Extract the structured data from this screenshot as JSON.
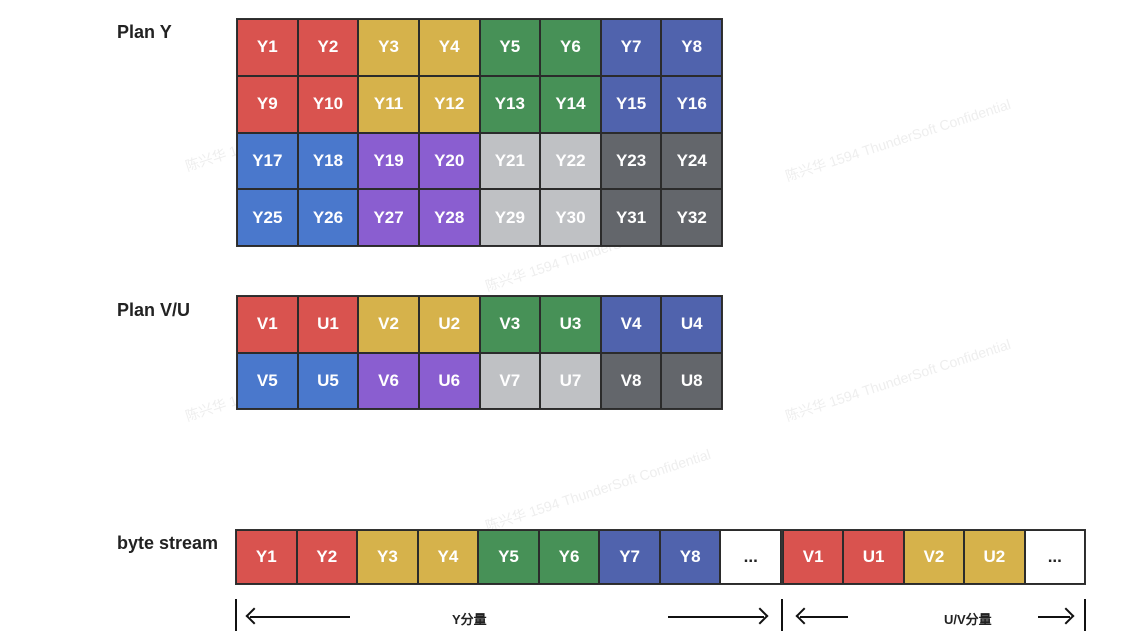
{
  "labels": {
    "plan_y": "Plan Y",
    "plan_vu": "Plan V/U",
    "byte_stream": "byte stream",
    "y_range": "Y分量",
    "uv_range": "U/V分量"
  },
  "watermark_text": "陈兴华 1594 ThunderSoft Confidential",
  "colors": {
    "red": "#d9534f",
    "yellow": "#d6b24b",
    "green": "#479157",
    "navy": "#5063ad",
    "blue": "#4a78cc",
    "purple": "#8a5ed0",
    "light_gray": "#bfc1c4",
    "dark_gray": "#63666b"
  },
  "plan_y_cells": [
    {
      "text": "Y1",
      "color": "red"
    },
    {
      "text": "Y2",
      "color": "red"
    },
    {
      "text": "Y3",
      "color": "yellow"
    },
    {
      "text": "Y4",
      "color": "yellow"
    },
    {
      "text": "Y5",
      "color": "green"
    },
    {
      "text": "Y6",
      "color": "green"
    },
    {
      "text": "Y7",
      "color": "navy"
    },
    {
      "text": "Y8",
      "color": "navy"
    },
    {
      "text": "Y9",
      "color": "red"
    },
    {
      "text": "Y10",
      "color": "red"
    },
    {
      "text": "Y11",
      "color": "yellow"
    },
    {
      "text": "Y12",
      "color": "yellow"
    },
    {
      "text": "Y13",
      "color": "green"
    },
    {
      "text": "Y14",
      "color": "green"
    },
    {
      "text": "Y15",
      "color": "navy"
    },
    {
      "text": "Y16",
      "color": "navy"
    },
    {
      "text": "Y17",
      "color": "blue"
    },
    {
      "text": "Y18",
      "color": "blue"
    },
    {
      "text": "Y19",
      "color": "purple"
    },
    {
      "text": "Y20",
      "color": "purple"
    },
    {
      "text": "Y21",
      "color": "lgray"
    },
    {
      "text": "Y22",
      "color": "lgray"
    },
    {
      "text": "Y23",
      "color": "dgray"
    },
    {
      "text": "Y24",
      "color": "dgray"
    },
    {
      "text": "Y25",
      "color": "blue"
    },
    {
      "text": "Y26",
      "color": "blue"
    },
    {
      "text": "Y27",
      "color": "purple"
    },
    {
      "text": "Y28",
      "color": "purple"
    },
    {
      "text": "Y29",
      "color": "lgray"
    },
    {
      "text": "Y30",
      "color": "lgray"
    },
    {
      "text": "Y31",
      "color": "dgray"
    },
    {
      "text": "Y32",
      "color": "dgray"
    }
  ],
  "plan_vu_cells": [
    {
      "text": "V1",
      "color": "red"
    },
    {
      "text": "U1",
      "color": "red"
    },
    {
      "text": "V2",
      "color": "yellow"
    },
    {
      "text": "U2",
      "color": "yellow"
    },
    {
      "text": "V3",
      "color": "green"
    },
    {
      "text": "U3",
      "color": "green"
    },
    {
      "text": "V4",
      "color": "navy"
    },
    {
      "text": "U4",
      "color": "navy"
    },
    {
      "text": "V5",
      "color": "blue"
    },
    {
      "text": "U5",
      "color": "blue"
    },
    {
      "text": "V6",
      "color": "purple"
    },
    {
      "text": "U6",
      "color": "purple"
    },
    {
      "text": "V7",
      "color": "lgray"
    },
    {
      "text": "U7",
      "color": "lgray"
    },
    {
      "text": "V8",
      "color": "dgray"
    },
    {
      "text": "U8",
      "color": "dgray"
    }
  ],
  "stream_y_cells": [
    {
      "text": "Y1",
      "color": "red"
    },
    {
      "text": "Y2",
      "color": "red"
    },
    {
      "text": "Y3",
      "color": "yellow"
    },
    {
      "text": "Y4",
      "color": "yellow"
    },
    {
      "text": "Y5",
      "color": "green"
    },
    {
      "text": "Y6",
      "color": "green"
    },
    {
      "text": "Y7",
      "color": "navy"
    },
    {
      "text": "Y8",
      "color": "navy"
    },
    {
      "text": "...",
      "color": "white"
    }
  ],
  "stream_uv_cells": [
    {
      "text": "V1",
      "color": "red"
    },
    {
      "text": "U1",
      "color": "red"
    },
    {
      "text": "V2",
      "color": "yellow"
    },
    {
      "text": "U2",
      "color": "yellow"
    },
    {
      "text": "...",
      "color": "white"
    }
  ]
}
